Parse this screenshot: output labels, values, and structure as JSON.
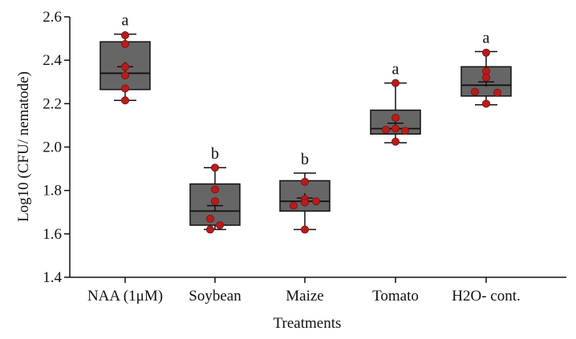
{
  "chart_data": {
    "type": "box",
    "xlabel": "Treatments",
    "ylabel": "Log10 (CFU/ nematode)",
    "ylim": [
      1.4,
      2.6
    ],
    "yticks": [
      "1.4",
      "1.6",
      "1.8",
      "2.0",
      "2.2",
      "2.4",
      "2.6"
    ],
    "grid": false,
    "colors": {
      "box": "#666666",
      "point": "#b71c1c",
      "line": "#111111"
    },
    "categories": [
      "NAA (1μM)",
      "Soybean",
      "Maize",
      "Tomato",
      "H2O- cont."
    ],
    "groups": [
      {
        "label": "NAA (1μM)",
        "letter": "a",
        "min": 2.215,
        "q1": 2.265,
        "median": 2.34,
        "q3": 2.485,
        "max": 2.52,
        "mean": 2.37,
        "points": [
          2.515,
          2.475,
          2.37,
          2.33,
          2.27,
          2.215
        ]
      },
      {
        "label": "Soybean",
        "letter": "b",
        "min": 1.62,
        "q1": 1.64,
        "median": 1.705,
        "q3": 1.83,
        "max": 1.905,
        "mean": 1.73,
        "points": [
          1.905,
          1.805,
          1.75,
          1.67,
          1.64,
          1.62
        ]
      },
      {
        "label": "Maize",
        "letter": "b",
        "min": 1.62,
        "q1": 1.705,
        "median": 1.75,
        "q3": 1.845,
        "max": 1.88,
        "mean": 1.765,
        "points": [
          1.84,
          1.76,
          1.745,
          1.73,
          1.75,
          1.62
        ]
      },
      {
        "label": "Tomato",
        "letter": "a",
        "min": 2.02,
        "q1": 2.06,
        "median": 2.085,
        "q3": 2.17,
        "max": 2.295,
        "mean": 2.11,
        "points": [
          2.295,
          2.135,
          2.085,
          2.08,
          2.075,
          2.025
        ]
      },
      {
        "label": "H2O- cont.",
        "letter": "a",
        "min": 2.195,
        "q1": 2.235,
        "median": 2.285,
        "q3": 2.37,
        "max": 2.44,
        "mean": 2.3,
        "points": [
          2.435,
          2.35,
          2.32,
          2.255,
          2.25,
          2.2
        ]
      }
    ]
  }
}
